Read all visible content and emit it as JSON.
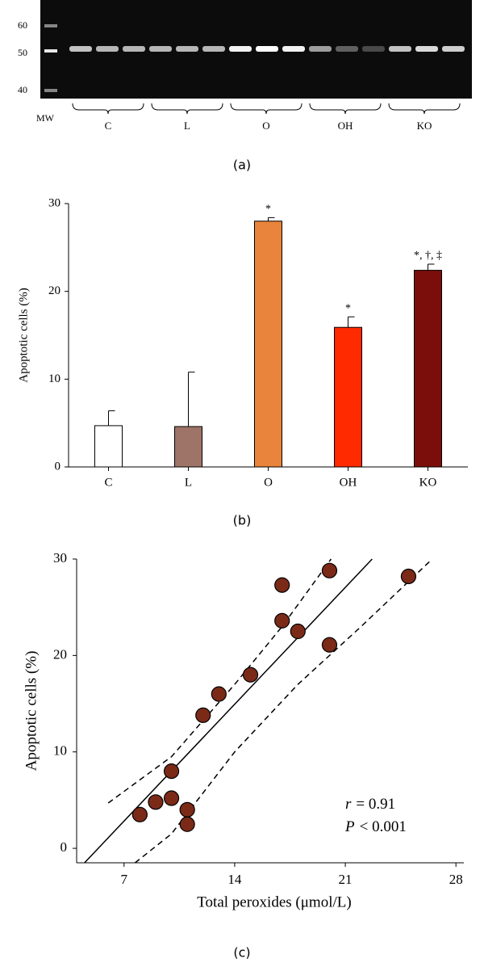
{
  "gel": {
    "mw_markers": [
      "60",
      "50",
      "40"
    ],
    "mw_label": "MW",
    "groups": [
      "C",
      "L",
      "O",
      "OH",
      "KO"
    ],
    "caption": "(a)"
  },
  "chart_data": [
    {
      "type": "bar",
      "caption": "(b)",
      "ylabel": "Apoptotic cells (%)",
      "categories": [
        "C",
        "L",
        "O",
        "OH",
        "KO"
      ],
      "values": [
        4.7,
        4.6,
        28,
        15.9,
        22.4
      ],
      "errors": [
        1.7,
        6.2,
        0.4,
        1.2,
        0.7
      ],
      "colors": [
        "#ffffff",
        "#9e7468",
        "#e8843b",
        "#ff2a00",
        "#7b0e0a"
      ],
      "annotations": [
        null,
        null,
        "*",
        "*",
        "*, †, ‡"
      ],
      "ylim": [
        0,
        30
      ],
      "yticks": [
        0,
        10,
        20,
        30
      ]
    },
    {
      "type": "scatter",
      "caption": "(c)",
      "xlabel": "Total peroxides (μmol/L)",
      "ylabel": "Apoptotic cells (%)",
      "x": [
        8,
        9,
        10,
        10,
        11,
        11,
        12,
        13,
        15,
        17,
        17,
        18,
        20,
        20,
        25
      ],
      "values": [
        3.5,
        4.8,
        5.2,
        8,
        4,
        2.5,
        13.8,
        16,
        18,
        27.3,
        23.6,
        22.5,
        28.8,
        21.1,
        28.2
      ],
      "color": "#7b2a18",
      "fit": {
        "x": [
          4.5,
          22.7
        ],
        "values": [
          -1.5,
          30
        ]
      },
      "band_upper": {
        "x": [
          6,
          10,
          14,
          17,
          20.1
        ],
        "values": [
          4.7,
          9.5,
          17,
          23,
          30
        ]
      },
      "band_lower": {
        "x": [
          7.7,
          10,
          14,
          18,
          22,
          26.5
        ],
        "values": [
          -1.5,
          1.5,
          10,
          17,
          23,
          30
        ]
      },
      "stats": [
        {
          "symbol": "r",
          "text": "= 0.91"
        },
        {
          "symbol": "P",
          "text": "< 0.001"
        }
      ],
      "xlim": [
        4,
        28.5
      ],
      "xticks": [
        7,
        14,
        21,
        28
      ],
      "ylim": [
        -1.5,
        30
      ],
      "yticks": [
        0,
        10,
        20,
        30
      ]
    }
  ]
}
